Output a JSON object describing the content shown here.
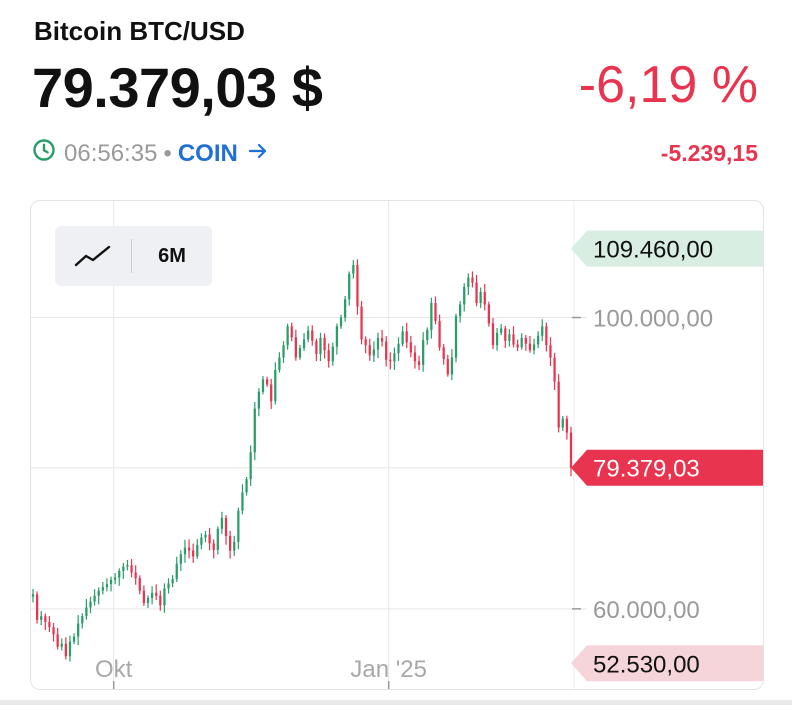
{
  "header": {
    "title": "Bitcoin BTC/USD",
    "price": "79.379,03 $",
    "change_percent": "-6,19 %",
    "change_absolute": "-5.239,15",
    "time": "06:56:35",
    "separator": "•",
    "source_link": "COIN"
  },
  "toolbar": {
    "chart_type_icon": "line-chart-icon",
    "range_label": "6M"
  },
  "colors": {
    "up": "#2a9d6a",
    "down": "#e8344e",
    "link": "#1f6fd6",
    "grid": "#e6e6e6",
    "high_badge": "#d8eee2",
    "low_badge": "#f5d5da",
    "current_badge": "#e8344e"
  },
  "chart_data": {
    "type": "candlestick",
    "title": "",
    "xlabel": "",
    "ylabel": "",
    "x_range": [
      "2024-09-04",
      "2025-03-04"
    ],
    "ylim": [
      49000,
      116000
    ],
    "x_tick_labels": [
      {
        "date": "2024-10-01",
        "label": "Okt"
      },
      {
        "date": "2025-01-01",
        "label": "Jan '25"
      }
    ],
    "y_tick_labels": [
      {
        "value": 100000,
        "label": "100.000,00"
      },
      {
        "value": 60000,
        "label": "60.000,00"
      }
    ],
    "badges": {
      "high": {
        "value": 109460,
        "label": "109.460,00"
      },
      "current": {
        "value": 79379.03,
        "label": "79.379,03"
      },
      "low": {
        "value": 52530,
        "label": "52.530,00"
      }
    },
    "candles_close": [
      62000,
      58500,
      59000,
      58200,
      57500,
      56500,
      54800,
      55200,
      53500,
      55500,
      56200,
      58000,
      59000,
      60200,
      61000,
      61800,
      62500,
      63000,
      63400,
      64000,
      64300,
      65200,
      65800,
      66000,
      65000,
      64200,
      62500,
      60800,
      61500,
      62200,
      61800,
      60500,
      62800,
      63500,
      64100,
      66200,
      67500,
      68400,
      68000,
      67200,
      68800,
      69800,
      70200,
      69000,
      68100,
      71000,
      72500,
      70000,
      68000,
      69200,
      73500,
      76000,
      77800,
      81500,
      87500,
      89800,
      91500,
      90800,
      88500,
      92800,
      94500,
      96200,
      98800,
      97300,
      94500,
      95800,
      97000,
      98200,
      96800,
      95000,
      97200,
      95500,
      94000,
      96000,
      98800,
      100000,
      102500,
      106000,
      107200,
      101500,
      97000,
      96200,
      94800,
      95600,
      97200,
      96700,
      94200,
      94000,
      95100,
      96400,
      98100,
      96600,
      95200,
      94000,
      93500,
      96900,
      98300,
      102000,
      99500,
      95900,
      94300,
      92200,
      94500,
      100200,
      101800,
      104200,
      105500,
      104800,
      102000,
      103500,
      101800,
      99200,
      96200,
      97900,
      98500,
      96800,
      97700,
      96300,
      95900,
      97200,
      96400,
      95500,
      96300,
      97500,
      98800,
      96200,
      94500,
      91200,
      84900,
      86100,
      84200,
      79379
    ]
  }
}
